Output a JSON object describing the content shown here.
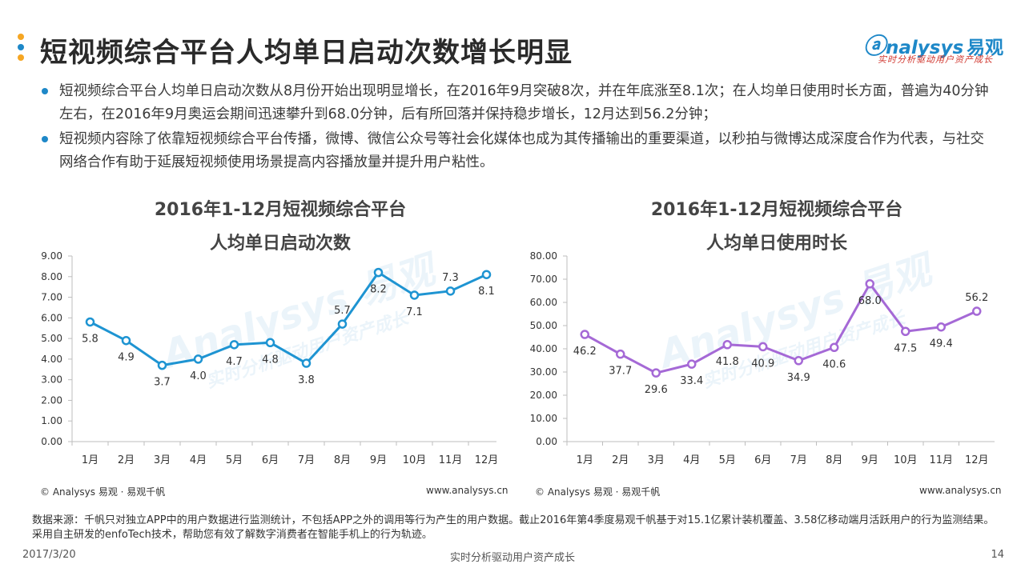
{
  "colors": {
    "accent": "#1e88c8",
    "orange": "#f5a623",
    "left_series": "#1e94d2",
    "right_series": "#a569d6",
    "logo_sub": "#d0342c"
  },
  "header": {
    "title": "短视频综合平台人均单日启动次数增长明显",
    "logo_main": "nalysys",
    "logo_cn": "易观",
    "logo_sub": "实时分析驱动用户资产成长"
  },
  "bullets": [
    "短视频综合平台人均单日启动次数从8月份开始出现明显增长，在2016年9月突破8次，并在年底涨至8.1次；在人均单日使用时长方面，普遍为40分钟左右，在2016年9月奥运会期间迅速攀升到68.0分钟，后有所回落并保持稳步增长，12月达到56.2分钟；",
    "短视频内容除了依靠短视频综合平台传播，微博、微信公众号等社会化媒体也成为其传播输出的重要渠道，以秒拍与微博达成深度合作为代表，与社交网络合作有助于延展短视频使用场景提高内容播放量并提升用户粘性。"
  ],
  "charts": {
    "left": {
      "title_line1": "2016年1-12月短视频综合平台",
      "title_line2": "人均单日启动次数",
      "source": "© Analysys 易观 · 易观千帆",
      "url": "www.analysys.cn"
    },
    "right": {
      "title_line1": "2016年1-12月短视频综合平台",
      "title_line2": "人均单日使用时长",
      "source": "© Analysys 易观 · 易观千帆",
      "url": "www.analysys.cn"
    }
  },
  "chart_data": [
    {
      "type": "line",
      "title": "2016年1-12月短视频综合平台人均单日启动次数",
      "categories": [
        "1月",
        "2月",
        "3月",
        "4月",
        "5月",
        "6月",
        "7月",
        "8月",
        "9月",
        "10月",
        "11月",
        "12月"
      ],
      "values": [
        5.8,
        4.9,
        3.7,
        4.0,
        4.7,
        4.8,
        3.8,
        5.7,
        8.2,
        7.1,
        7.3,
        8.1
      ],
      "labels": [
        "5.8",
        "4.9",
        "3.7",
        "4.0",
        "4.7",
        "4.8",
        "3.8",
        "5.7",
        "8.2",
        "7.1",
        "7.3",
        "8.1"
      ],
      "yticks": [
        "0.00",
        "1.00",
        "2.00",
        "3.00",
        "4.00",
        "5.00",
        "6.00",
        "7.00",
        "8.00",
        "9.00"
      ],
      "ylim": [
        0,
        9
      ],
      "grid": false,
      "legend": "none"
    },
    {
      "type": "line",
      "title": "2016年1-12月短视频综合平台人均单日使用时长",
      "categories": [
        "1月",
        "2月",
        "3月",
        "4月",
        "5月",
        "6月",
        "7月",
        "8月",
        "9月",
        "10月",
        "11月",
        "12月"
      ],
      "values": [
        46.2,
        37.7,
        29.6,
        33.4,
        41.8,
        40.9,
        34.9,
        40.6,
        68.0,
        47.5,
        49.4,
        56.2
      ],
      "labels": [
        "46.2",
        "37.7",
        "29.6",
        "33.4",
        "41.8",
        "40.9",
        "34.9",
        "40.6",
        "68.0",
        "47.5",
        "49.4",
        "56.2"
      ],
      "yticks": [
        "0.00",
        "10.00",
        "20.00",
        "30.00",
        "40.00",
        "50.00",
        "60.00",
        "70.00",
        "80.00"
      ],
      "ylim": [
        0,
        80
      ],
      "grid": false,
      "legend": "none"
    }
  ],
  "footer": {
    "note": "数据来源：千帆只对独立APP中的用户数据进行监测统计，不包括APP之外的调用等行为产生的用户数据。截止2016年第4季度易观千帆基于对15.1亿累计装机覆盖、3.58亿移动端月活跃用户的行为监测结果。采用自主研发的enfoTech技术，帮助您有效了解数字消费者在智能手机上的行为轨迹。",
    "date": "2017/3/20",
    "slogan": "实时分析驱动用户资产成长",
    "page": "14"
  }
}
